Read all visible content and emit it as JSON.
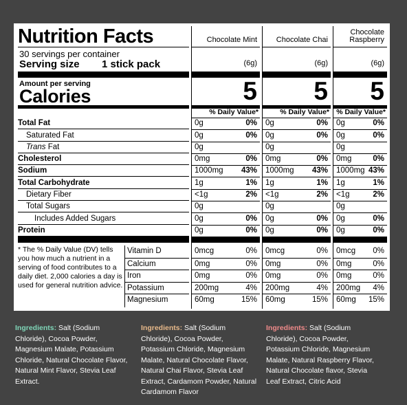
{
  "label": {
    "title": "Nutrition Facts",
    "servings": "30 servings per container",
    "serving_size_label": "Serving size",
    "serving_size_value": "1 stick pack",
    "amount_per_serving": "Amount per serving",
    "calories_label": "Calories",
    "nutrients": [
      {
        "label": "Total Fat",
        "bold": true
      },
      {
        "label": "Saturated Fat",
        "bold": false
      },
      {
        "label": "Trans Fat",
        "bold": false
      },
      {
        "label": "Cholesterol",
        "bold": true
      },
      {
        "label": "Sodium",
        "bold": true
      },
      {
        "label": "Total Carbohydrate",
        "bold": true
      },
      {
        "label": "Dietary Fiber",
        "bold": false
      },
      {
        "label": "Total Sugars",
        "bold": false
      },
      {
        "label": "Includes Added Sugars",
        "bold": false
      },
      {
        "label": "Protein",
        "bold": true
      }
    ],
    "footnote": "* The % Daily Value (DV) tells you how much a nutrient in a serving of food contributes to a daily diet. 2,000 calories a day is used for general nutrition advice.",
    "vitamins": [
      "Vitamin D",
      "Calcium",
      "Iron",
      "Potassium",
      "Magnesium"
    ]
  },
  "flavors": [
    {
      "name": "Chocolate Mint",
      "serving_grams": "(6g)",
      "calories": "5",
      "dv_header": "% Daily Value*",
      "nutrients": [
        [
          "0g",
          "0%"
        ],
        [
          "0g",
          "0%"
        ],
        [
          "0g",
          ""
        ],
        [
          "0mg",
          "0%"
        ],
        [
          "1000mg",
          "43%"
        ],
        [
          "1g",
          "1%"
        ],
        [
          "<1g",
          "2%"
        ],
        [
          "0g",
          ""
        ],
        [
          "0g",
          "0%"
        ],
        [
          "0g",
          "0%"
        ]
      ],
      "vitamins": [
        [
          "0mcg",
          "0%"
        ],
        [
          "0mg",
          "0%"
        ],
        [
          "0mg",
          "0%"
        ],
        [
          "200mg",
          "4%"
        ],
        [
          "60mg",
          "15%"
        ]
      ]
    },
    {
      "name": "Chocolate Chai",
      "serving_grams": "(6g)",
      "calories": "5",
      "dv_header": "% Daily Value*",
      "nutrients": [
        [
          "0g",
          "0%"
        ],
        [
          "0g",
          "0%"
        ],
        [
          "0g",
          ""
        ],
        [
          "0mg",
          "0%"
        ],
        [
          "1000mg",
          "43%"
        ],
        [
          "1g",
          "1%"
        ],
        [
          "<1g",
          "2%"
        ],
        [
          "0g",
          ""
        ],
        [
          "0g",
          "0%"
        ],
        [
          "0g",
          "0%"
        ]
      ],
      "vitamins": [
        [
          "0mcg",
          "0%"
        ],
        [
          "0mg",
          "0%"
        ],
        [
          "0mg",
          "0%"
        ],
        [
          "200mg",
          "4%"
        ],
        [
          "60mg",
          "15%"
        ]
      ]
    },
    {
      "name": "Chocolate Raspberry",
      "serving_grams": "(6g)",
      "calories": "5",
      "dv_header": "% Daily Value*",
      "nutrients": [
        [
          "0g",
          "0%"
        ],
        [
          "0g",
          "0%"
        ],
        [
          "0g",
          ""
        ],
        [
          "0mg",
          "0%"
        ],
        [
          "1000mg",
          "43%"
        ],
        [
          "1g",
          "1%"
        ],
        [
          "<1g",
          "2%"
        ],
        [
          "0g",
          ""
        ],
        [
          "0g",
          "0%"
        ],
        [
          "0g",
          "0%"
        ]
      ],
      "vitamins": [
        [
          "0mcg",
          "0%"
        ],
        [
          "0mg",
          "0%"
        ],
        [
          "0mg",
          "0%"
        ],
        [
          "200mg",
          "4%"
        ],
        [
          "60mg",
          "15%"
        ]
      ]
    }
  ],
  "ingredients": [
    {
      "label": "Ingredients:",
      "text": " Salt (Sodium Chloride), Cocoa Powder, Magnesium Malate, Potassium Chloride, Natural Chocolate Flavor, Natural Mint Flavor, Stevia Leaf Extract.",
      "color": "#7fd6b8"
    },
    {
      "label": "Ingredients:",
      "text": " Salt (Sodium Chloride), Cocoa Powder, Potassium Chloride, Magnesium Malate, Natural Chocolate Flavor, Natural Chai Flavor, Stevia Leaf Extract, Cardamom Powder, Natural Cardamom Flavor",
      "color": "#e7b98a"
    },
    {
      "label": "Ingredients:",
      "text": " Salt (Sodium Chloride), Cocoa Powder, Potassium Chloride, Magnesium Malate, Natural Raspberry Flavor, Natural Chocolate flavor, Stevia Leaf Extract, Citric Acid",
      "color": "#f08a8a"
    }
  ],
  "colors": {
    "background": "#434343",
    "panel": "#ffffff"
  }
}
